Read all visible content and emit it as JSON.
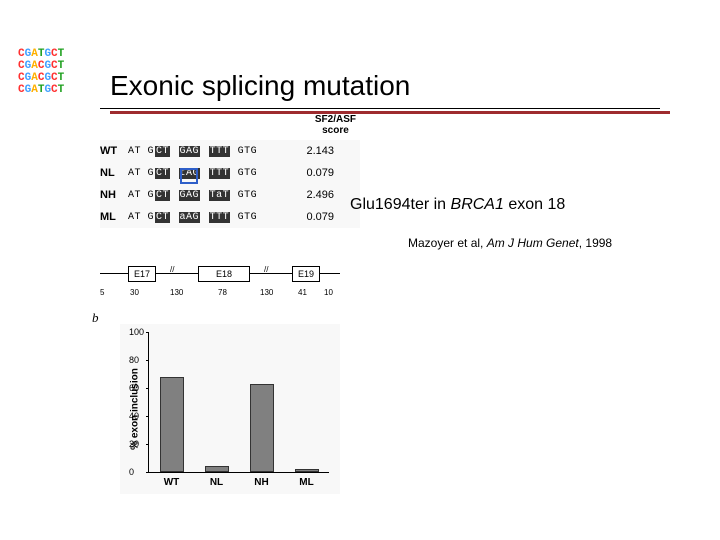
{
  "logo": {
    "lines": [
      [
        [
          "C",
          "#ff3030"
        ],
        [
          "G",
          "#40a0ff"
        ],
        [
          "A",
          "#ffb000"
        ],
        [
          "T",
          "#20a020"
        ],
        [
          "G",
          "#40a0ff"
        ],
        [
          "C",
          "#ff3030"
        ],
        [
          "T",
          "#20a020"
        ]
      ],
      [
        [
          "C",
          "#ff3030"
        ],
        [
          "G",
          "#40a0ff"
        ],
        [
          "A",
          "#ffb000"
        ],
        [
          "C",
          "#ff3030"
        ],
        [
          "G",
          "#40a0ff"
        ],
        [
          "C",
          "#ff3030"
        ],
        [
          "T",
          "#20a020"
        ]
      ],
      [
        [
          "C",
          "#ff3030"
        ],
        [
          "G",
          "#40a0ff"
        ],
        [
          "A",
          "#ffb000"
        ],
        [
          "C",
          "#ff3030"
        ],
        [
          "G",
          "#40a0ff"
        ],
        [
          "C",
          "#ff3030"
        ],
        [
          "T",
          "#20a020"
        ]
      ],
      [
        [
          "C",
          "#ff3030"
        ],
        [
          "G",
          "#40a0ff"
        ],
        [
          "A",
          "#ffb000"
        ],
        [
          "T",
          "#20a020"
        ],
        [
          "G",
          "#40a0ff"
        ],
        [
          "C",
          "#ff3030"
        ],
        [
          "T",
          "#20a020"
        ]
      ]
    ]
  },
  "title": "Exonic splicing mutation",
  "title_rule_color": "#9e2b2f",
  "score_header_l1": "SF2/ASF",
  "score_header_l2": "score",
  "sequences": [
    {
      "label": "WT",
      "pre": "AT G",
      "b1": "CT",
      "mid": " ",
      "b2": "GAG",
      "mid2": " ",
      "b3": "TTT",
      "post": " GTG",
      "score": "2.143",
      "highlight": false
    },
    {
      "label": "NL",
      "pre": "AT G",
      "b1": "CT",
      "mid": " ",
      "b2": "tAG",
      "mid2": " ",
      "b3": "TTT",
      "post": " GTG",
      "score": "0.079",
      "highlight": true
    },
    {
      "label": "NH",
      "pre": "AT G",
      "b1": "CT",
      "mid": " ",
      "b2": "GAG",
      "mid2": " ",
      "b3": "TaT",
      "post": " GTG",
      "score": "2.496",
      "highlight": false
    },
    {
      "label": "ML",
      "pre": "AT G",
      "b1": "CT",
      "mid": " ",
      "b2": "aAG",
      "mid2": " ",
      "b3": "TTT",
      "post": " GTG",
      "score": "0.079",
      "highlight": false
    }
  ],
  "exon_diagram": {
    "e17_label": "E17",
    "e18_label": "E18",
    "e19_label": "E19",
    "nums": [
      "5",
      "30",
      "130",
      "78",
      "130",
      "41",
      "10"
    ]
  },
  "panel_b_label": "b",
  "chart": {
    "y_label": "% exon inclusion",
    "ylim": [
      0,
      100
    ],
    "yticks": [
      0,
      20,
      40,
      60,
      80,
      100
    ],
    "categories": [
      "WT",
      "NL",
      "NH",
      "ML"
    ],
    "values": [
      68,
      4,
      63,
      2
    ],
    "bar_color": "#808080",
    "background": "#f8f8f8"
  },
  "caption_pre": "Glu1694ter in ",
  "caption_gene": "BRCA1",
  "caption_post": " exon 18",
  "citation_pre": "Mazoyer et al, ",
  "citation_ital": "Am J Hum Genet",
  "citation_post": ", 1998"
}
